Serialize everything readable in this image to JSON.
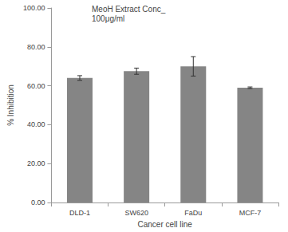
{
  "chart_data": {
    "type": "bar",
    "title": "MeoH Extract Conc_\n100μg/ml",
    "x_label": "Cancer cell line",
    "y_label": "% Inhibition",
    "categories": [
      "DLD-1",
      "SW620",
      "FaDu",
      "MCF-7"
    ],
    "values": [
      64,
      67.5,
      70,
      59
    ],
    "errors": [
      1.2,
      1.6,
      5,
      0.4
    ],
    "color": "#858585",
    "ylim": [
      0,
      100
    ],
    "yticks": [
      {
        "value": 0,
        "label": "0.00"
      },
      {
        "value": 20,
        "label": "20.00"
      },
      {
        "value": 40,
        "label": "40.00"
      },
      {
        "value": 60,
        "label": "60.00"
      },
      {
        "value": 80,
        "label": "80.00"
      },
      {
        "value": 100,
        "label": "100.00"
      }
    ],
    "grid": false
  }
}
